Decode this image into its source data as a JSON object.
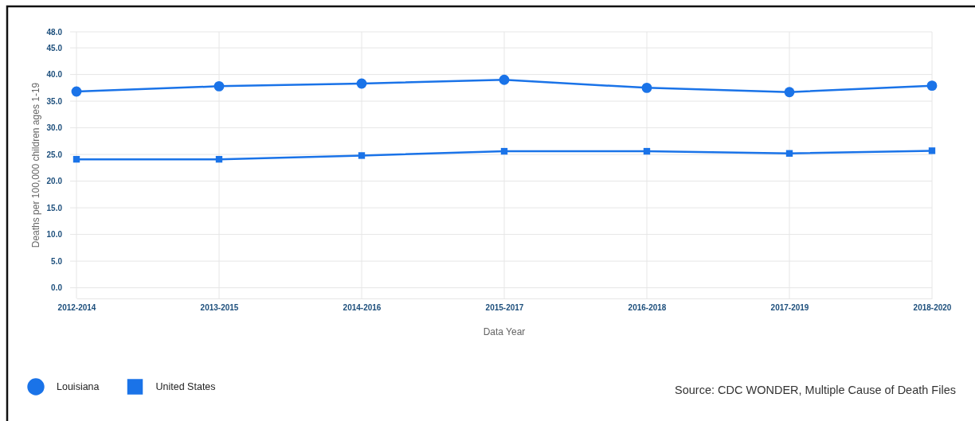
{
  "chart_data": {
    "type": "line",
    "xlabel": "Data Year",
    "ylabel": "Deaths per 100,000 children ages 1-19",
    "categories": [
      "2012-2014",
      "2013-2015",
      "2014-2016",
      "2015-2017",
      "2016-2018",
      "2017-2019",
      "2018-2020"
    ],
    "series": [
      {
        "name": "Louisiana",
        "color": "#1a73e8",
        "marker": "circle",
        "values": [
          36.8,
          37.8,
          38.3,
          39.0,
          37.5,
          36.7,
          37.9
        ]
      },
      {
        "name": "United States",
        "color": "#1a73e8",
        "marker": "square",
        "values": [
          24.1,
          24.1,
          24.8,
          25.6,
          25.6,
          25.2,
          25.7
        ]
      }
    ],
    "ylim": [
      -2,
      48
    ],
    "yticks": [
      {
        "value": 0,
        "label": "0.0"
      },
      {
        "value": 5,
        "label": "5.0"
      },
      {
        "value": 10,
        "label": "10.0"
      },
      {
        "value": 15,
        "label": "15.0"
      },
      {
        "value": 20,
        "label": "20.0"
      },
      {
        "value": 25,
        "label": "25.0"
      },
      {
        "value": 30,
        "label": "30.0"
      },
      {
        "value": 35,
        "label": "35.0"
      },
      {
        "value": 40,
        "label": "40.0"
      },
      {
        "value": 45,
        "label": "45.0"
      },
      {
        "value": 48,
        "label": "48.0"
      }
    ],
    "grid": true,
    "legend": "bottom left",
    "annotations": [
      "Source: CDC WONDER, Multiple Cause of Death Files"
    ]
  }
}
